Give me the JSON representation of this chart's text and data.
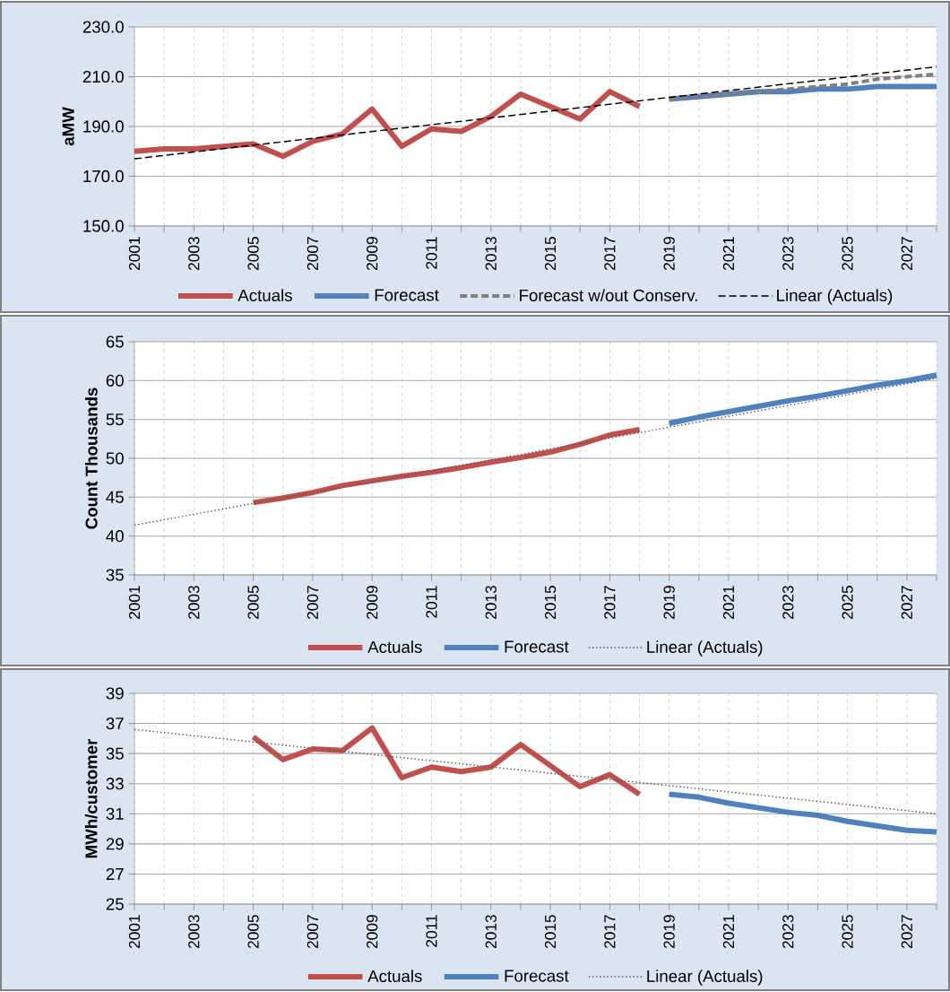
{
  "chart_data": [
    {
      "type": "line",
      "ylabel": "aMW",
      "xlim": [
        2001,
        2028
      ],
      "ylim": [
        150,
        230
      ],
      "xticks": [
        2001,
        {
          "value": 2002,
          "label": null
        },
        2003,
        {
          "value": 2004,
          "label": null
        },
        2005,
        {
          "value": 2006,
          "label": null
        },
        2007,
        {
          "value": 2008,
          "label": null
        },
        2009,
        {
          "value": 2010,
          "label": null
        },
        2011,
        {
          "value": 2012,
          "label": null
        },
        2013,
        {
          "value": 2014,
          "label": null
        },
        2015,
        {
          "value": 2016,
          "label": null
        },
        2017,
        {
          "value": 2018,
          "label": null
        },
        2019,
        {
          "value": 2020,
          "label": null
        },
        2021,
        {
          "value": 2022,
          "label": null
        },
        2023,
        {
          "value": 2024,
          "label": null
        },
        2025,
        {
          "value": 2026,
          "label": null
        },
        2027,
        {
          "value": 2028,
          "label": null
        }
      ],
      "yticks": [
        {
          "value": 150,
          "label": "150.0"
        },
        {
          "value": 170,
          "label": "170.0"
        },
        {
          "value": 190,
          "label": "190.0"
        },
        {
          "value": 210,
          "label": "210.0"
        },
        {
          "value": 230,
          "label": "230.0"
        }
      ],
      "grid": true,
      "legend": "bottom",
      "series": [
        {
          "name": "Actuals",
          "color": "#c0504d",
          "line_style": "solid",
          "x": [
            2001,
            2002,
            2003,
            2004,
            2005,
            2006,
            2007,
            2008,
            2009,
            2010,
            2011,
            2012,
            2013,
            2014,
            2015,
            2016,
            2017,
            2018
          ],
          "values": [
            180,
            181,
            181,
            182,
            183,
            178,
            184,
            187,
            197,
            182,
            189,
            188,
            194,
            203,
            198,
            193,
            204,
            198
          ]
        },
        {
          "name": "Forecast",
          "color": "#4f81bd",
          "line_style": "solid",
          "x": [
            2019,
            2020,
            2021,
            2022,
            2023,
            2024,
            2025,
            2026,
            2027,
            2028
          ],
          "values": [
            201,
            202,
            203,
            204,
            204,
            205,
            205,
            206,
            206,
            206
          ]
        },
        {
          "name": "Forecast w/out Conserv.",
          "color": "#7f7f7f",
          "line_style": "dashed",
          "x": [
            2019,
            2020,
            2021,
            2022,
            2023,
            2024,
            2025,
            2026,
            2027,
            2028
          ],
          "values": [
            201,
            202,
            203,
            204,
            205,
            206,
            207,
            209,
            210,
            211
          ]
        },
        {
          "name": "Linear (Actuals)",
          "color": "#000000",
          "line_style": "dashed",
          "x": [
            2001,
            2028
          ],
          "values": [
            177,
            214
          ]
        }
      ]
    },
    {
      "type": "line",
      "ylabel": "Count Thousands",
      "xlim": [
        2001,
        2028
      ],
      "ylim": [
        35,
        65
      ],
      "xticks": [
        2001,
        {
          "value": 2002,
          "label": null
        },
        2003,
        {
          "value": 2004,
          "label": null
        },
        2005,
        {
          "value": 2006,
          "label": null
        },
        2007,
        {
          "value": 2008,
          "label": null
        },
        2009,
        {
          "value": 2010,
          "label": null
        },
        2011,
        {
          "value": 2012,
          "label": null
        },
        2013,
        {
          "value": 2014,
          "label": null
        },
        2015,
        {
          "value": 2016,
          "label": null
        },
        2017,
        {
          "value": 2018,
          "label": null
        },
        2019,
        {
          "value": 2020,
          "label": null
        },
        2021,
        {
          "value": 2022,
          "label": null
        },
        2023,
        {
          "value": 2024,
          "label": null
        },
        2025,
        {
          "value": 2026,
          "label": null
        },
        2027,
        {
          "value": 2028,
          "label": null
        }
      ],
      "yticks": [
        35,
        40,
        45,
        50,
        55,
        60,
        65
      ],
      "grid": true,
      "legend": "bottom",
      "series": [
        {
          "name": "Actuals",
          "color": "#c0504d",
          "line_style": "solid",
          "x": [
            2005,
            2006,
            2007,
            2008,
            2009,
            2010,
            2011,
            2012,
            2013,
            2014,
            2015,
            2016,
            2017,
            2018
          ],
          "values": [
            44.3,
            44.9,
            45.6,
            46.5,
            47.1,
            47.7,
            48.2,
            48.8,
            49.5,
            50.1,
            50.8,
            51.8,
            53.0,
            53.7
          ]
        },
        {
          "name": "Forecast",
          "color": "#4f81bd",
          "line_style": "solid",
          "x": [
            2019,
            2020,
            2021,
            2022,
            2023,
            2024,
            2025,
            2026,
            2027,
            2028
          ],
          "values": [
            54.5,
            55.3,
            56.0,
            56.7,
            57.4,
            58.0,
            58.7,
            59.4,
            60.0,
            60.7
          ]
        },
        {
          "name": "Linear (Actuals)",
          "color": "#595959",
          "line_style": "dotted",
          "x": [
            2001,
            2028
          ],
          "values": [
            41.4,
            60.3
          ]
        }
      ]
    },
    {
      "type": "line",
      "ylabel": "MWh/customer",
      "xlim": [
        2001,
        2028
      ],
      "ylim": [
        25,
        39
      ],
      "xticks": [
        2001,
        {
          "value": 2002,
          "label": null
        },
        2003,
        {
          "value": 2004,
          "label": null
        },
        2005,
        {
          "value": 2006,
          "label": null
        },
        2007,
        {
          "value": 2008,
          "label": null
        },
        2009,
        {
          "value": 2010,
          "label": null
        },
        2011,
        {
          "value": 2012,
          "label": null
        },
        2013,
        {
          "value": 2014,
          "label": null
        },
        2015,
        {
          "value": 2016,
          "label": null
        },
        2017,
        {
          "value": 2018,
          "label": null
        },
        2019,
        {
          "value": 2020,
          "label": null
        },
        2021,
        {
          "value": 2022,
          "label": null
        },
        2023,
        {
          "value": 2024,
          "label": null
        },
        2025,
        {
          "value": 2026,
          "label": null
        },
        2027,
        {
          "value": 2028,
          "label": null
        }
      ],
      "yticks": [
        25,
        27,
        29,
        31,
        33,
        35,
        37,
        39
      ],
      "grid": true,
      "legend": "bottom",
      "series": [
        {
          "name": "Actuals",
          "color": "#c0504d",
          "line_style": "solid",
          "x": [
            2005,
            2006,
            2007,
            2008,
            2009,
            2010,
            2011,
            2012,
            2013,
            2014,
            2015,
            2016,
            2017,
            2018
          ],
          "values": [
            36.1,
            34.6,
            35.3,
            35.2,
            36.7,
            33.4,
            34.1,
            33.8,
            34.1,
            35.6,
            34.2,
            32.8,
            33.6,
            32.3
          ]
        },
        {
          "name": "Forecast",
          "color": "#4f81bd",
          "line_style": "solid",
          "x": [
            2019,
            2020,
            2021,
            2022,
            2023,
            2024,
            2025,
            2026,
            2027,
            2028
          ],
          "values": [
            32.3,
            32.1,
            31.7,
            31.4,
            31.1,
            30.9,
            30.5,
            30.2,
            29.9,
            29.8
          ]
        },
        {
          "name": "Linear (Actuals)",
          "color": "#595959",
          "line_style": "dotted",
          "x": [
            2001,
            2028
          ],
          "values": [
            36.6,
            31.0
          ]
        }
      ]
    }
  ]
}
